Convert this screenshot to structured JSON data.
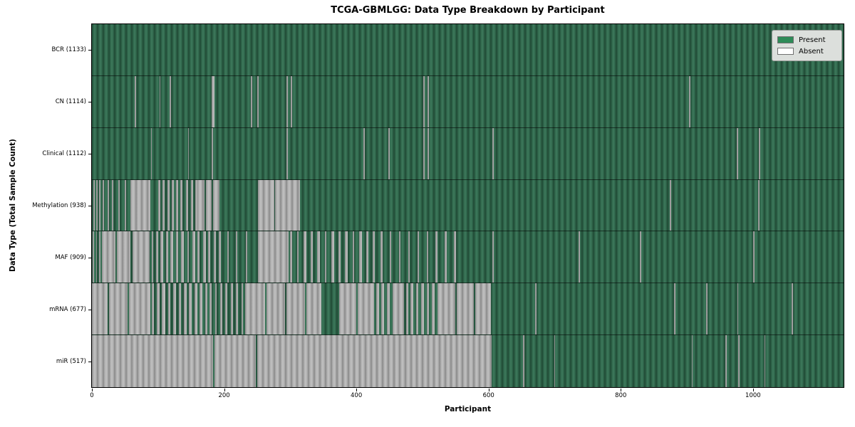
{
  "chart_data": {
    "type": "heatmap",
    "title": "TCGA-GBMLGG: Data Type Breakdown by Participant",
    "xlabel": "Participant",
    "ylabel": "Data Type (Total Sample Count)",
    "total_participants": 1133,
    "xlim": [
      0,
      1137
    ],
    "x_ticks": [
      0,
      200,
      400,
      600,
      800,
      1000
    ],
    "legend_position": "upper right",
    "grid": false,
    "value_encoding": {
      "present": "green striped bar",
      "absent": "gray/white striped bar"
    },
    "rows": [
      {
        "name": "bcr",
        "label": "BCR (1133)",
        "data_type": "BCR",
        "present_count": 1133,
        "absent_intervals": []
      },
      {
        "name": "cn",
        "label": "CN (1114)",
        "data_type": "CN",
        "present_count": 1114,
        "absent_intervals": [
          [
            65,
            67
          ],
          [
            102,
            104
          ],
          [
            118,
            120
          ],
          [
            181,
            185
          ],
          [
            240,
            242
          ],
          [
            250,
            252
          ],
          [
            294,
            296
          ],
          [
            301,
            303
          ],
          [
            501,
            503
          ],
          [
            508,
            510
          ],
          [
            903,
            905
          ]
        ]
      },
      {
        "name": "clinical",
        "label": "Clinical (1112)",
        "data_type": "Clinical",
        "present_count": 1112,
        "absent_intervals": [
          [
            89,
            91
          ],
          [
            145,
            147
          ],
          [
            181,
            183
          ],
          [
            294,
            296
          ],
          [
            411,
            413
          ],
          [
            448,
            450
          ],
          [
            501,
            503
          ],
          [
            508,
            510
          ],
          [
            606,
            608
          ],
          [
            975,
            977
          ],
          [
            1009,
            1011
          ]
        ]
      },
      {
        "name": "methylation",
        "label": "Methylation (938)",
        "data_type": "Methylation",
        "present_count": 938,
        "absent_intervals": [
          [
            2,
            4
          ],
          [
            7,
            9
          ],
          [
            11,
            13
          ],
          [
            16,
            18
          ],
          [
            24,
            26
          ],
          [
            30,
            32
          ],
          [
            40,
            42
          ],
          [
            50,
            52
          ],
          [
            58,
            88
          ],
          [
            100,
            103
          ],
          [
            107,
            110
          ],
          [
            114,
            117
          ],
          [
            121,
            124
          ],
          [
            127,
            130
          ],
          [
            134,
            137
          ],
          [
            142,
            146
          ],
          [
            150,
            153
          ],
          [
            156,
            159
          ],
          [
            160,
            170
          ],
          [
            172,
            181
          ],
          [
            183,
            193
          ],
          [
            251,
            276
          ],
          [
            277,
            315
          ],
          [
            874,
            876
          ],
          [
            1008,
            1010
          ]
        ]
      },
      {
        "name": "maf",
        "label": "MAF (909)",
        "data_type": "MAF",
        "present_count": 909,
        "absent_intervals": [
          [
            1,
            3
          ],
          [
            6,
            8
          ],
          [
            11,
            13
          ],
          [
            15,
            36
          ],
          [
            38,
            58
          ],
          [
            61,
            87
          ],
          [
            90,
            93
          ],
          [
            97,
            100
          ],
          [
            104,
            108
          ],
          [
            112,
            115
          ],
          [
            119,
            123
          ],
          [
            127,
            130
          ],
          [
            135,
            139
          ],
          [
            144,
            147
          ],
          [
            152,
            156
          ],
          [
            160,
            163
          ],
          [
            168,
            172
          ],
          [
            176,
            179
          ],
          [
            184,
            188
          ],
          [
            192,
            195
          ],
          [
            205,
            207
          ],
          [
            218,
            220
          ],
          [
            233,
            235
          ],
          [
            251,
            297
          ],
          [
            300,
            303
          ],
          [
            310,
            313
          ],
          [
            320,
            324
          ],
          [
            331,
            334
          ],
          [
            341,
            345
          ],
          [
            352,
            355
          ],
          [
            362,
            366
          ],
          [
            373,
            376
          ],
          [
            383,
            387
          ],
          [
            394,
            397
          ],
          [
            404,
            408
          ],
          [
            415,
            418
          ],
          [
            425,
            428
          ],
          [
            437,
            440
          ],
          [
            450,
            453
          ],
          [
            464,
            467
          ],
          [
            478,
            481
          ],
          [
            492,
            495
          ],
          [
            506,
            509
          ],
          [
            520,
            523
          ],
          [
            534,
            537
          ],
          [
            548,
            551
          ],
          [
            606,
            608
          ],
          [
            736,
            738
          ],
          [
            829,
            831
          ],
          [
            1000,
            1002
          ]
        ]
      },
      {
        "name": "mrna",
        "label": "mRNA (677)",
        "data_type": "mRNA",
        "present_count": 677,
        "absent_intervals": [
          [
            0,
            24
          ],
          [
            26,
            54
          ],
          [
            56,
            88
          ],
          [
            90,
            94
          ],
          [
            98,
            102
          ],
          [
            106,
            111
          ],
          [
            115,
            119
          ],
          [
            123,
            127
          ],
          [
            131,
            135
          ],
          [
            139,
            143
          ],
          [
            147,
            151
          ],
          [
            155,
            159
          ],
          [
            163,
            167
          ],
          [
            171,
            175
          ],
          [
            178,
            181
          ],
          [
            186,
            189
          ],
          [
            194,
            197
          ],
          [
            202,
            205
          ],
          [
            210,
            213
          ],
          [
            218,
            221
          ],
          [
            226,
            229
          ],
          [
            232,
            262
          ],
          [
            264,
            292
          ],
          [
            294,
            322
          ],
          [
            324,
            347
          ],
          [
            374,
            400
          ],
          [
            402,
            427
          ],
          [
            430,
            434
          ],
          [
            438,
            442
          ],
          [
            446,
            450
          ],
          [
            455,
            472
          ],
          [
            475,
            478
          ],
          [
            482,
            486
          ],
          [
            490,
            494
          ],
          [
            498,
            502
          ],
          [
            506,
            510
          ],
          [
            514,
            518
          ],
          [
            523,
            550
          ],
          [
            552,
            578
          ],
          [
            580,
            604
          ],
          [
            670,
            672
          ],
          [
            881,
            883
          ],
          [
            929,
            931
          ],
          [
            976,
            978
          ],
          [
            1058,
            1060
          ]
        ]
      },
      {
        "name": "mir",
        "label": "miR (517)",
        "data_type": "miR",
        "present_count": 517,
        "absent_intervals": [
          [
            0,
            183
          ],
          [
            185,
            248
          ],
          [
            250,
            605
          ],
          [
            652,
            654
          ],
          [
            699,
            701
          ],
          [
            907,
            909
          ],
          [
            958,
            960
          ],
          [
            977,
            980
          ],
          [
            1017,
            1019
          ]
        ]
      }
    ]
  },
  "legend": {
    "items": [
      {
        "label": "Present",
        "color": "#2e8b57"
      },
      {
        "label": "Absent",
        "color": "#ffffff"
      }
    ]
  },
  "colors": {
    "present_base": "#2c6147",
    "present_light": "#3d7a5c",
    "present_dark": "#1f4734",
    "absent_base": "#a9a9a9",
    "absent_light": "#c2c2c2",
    "absent_dark": "#878787",
    "background": "#ffffff",
    "axis": "#000000"
  }
}
